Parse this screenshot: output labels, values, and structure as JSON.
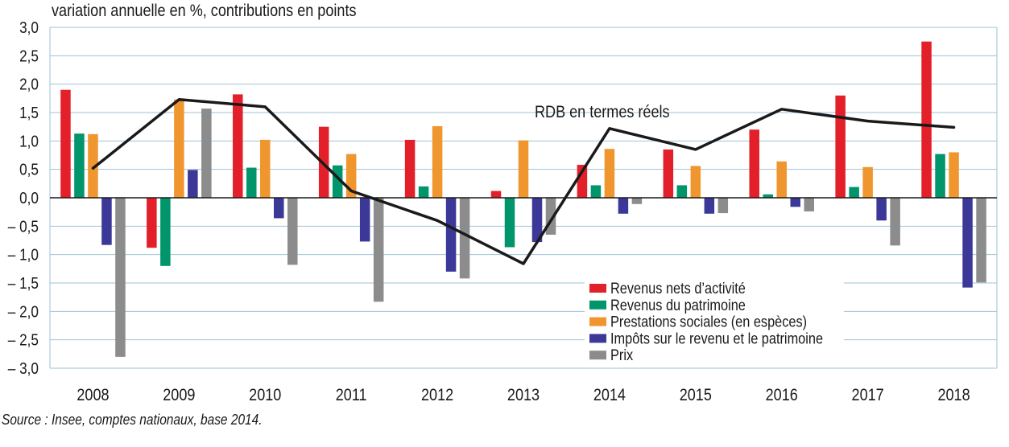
{
  "chart_data": {
    "type": "bar",
    "title": "variation annuelle en %, contributions en points",
    "source_prefix": "Source",
    "source_text": " : Insee, comptes nationaux, base 2014.",
    "categories": [
      "2008",
      "2009",
      "2010",
      "2011",
      "2012",
      "2013",
      "2014",
      "2015",
      "2016",
      "2017",
      "2018"
    ],
    "y_tick_labels": [
      "3,0",
      "2,5",
      "2,0",
      "1,5",
      "1,0",
      "0,5",
      "0,0",
      "– 0,5",
      "– 1,0",
      "– 1,5",
      "– 2,0",
      "– 2,5",
      "– 3,0"
    ],
    "y_ticks": [
      3.0,
      2.5,
      2.0,
      1.5,
      1.0,
      0.5,
      0.0,
      -0.5,
      -1.0,
      -1.5,
      -2.0,
      -2.5,
      -3.0
    ],
    "ylim": [
      -3.0,
      3.0
    ],
    "grid": true,
    "legend_position": "bottom-right",
    "series": [
      {
        "name": "Revenus nets d’activité",
        "color": "#e3202a",
        "values": [
          1.9,
          -0.88,
          1.82,
          1.25,
          1.02,
          0.12,
          0.58,
          0.85,
          1.2,
          1.8,
          2.75
        ]
      },
      {
        "name": "Revenus du patrimoine",
        "color": "#00956a",
        "values": [
          1.13,
          -1.2,
          0.53,
          0.57,
          0.2,
          -0.87,
          0.22,
          0.22,
          0.06,
          0.19,
          0.77
        ]
      },
      {
        "name": "Prestations sociales (en espèces)",
        "color": "#f0962e",
        "values": [
          1.12,
          1.73,
          1.02,
          0.77,
          1.26,
          1.01,
          0.86,
          0.56,
          0.64,
          0.54,
          0.8
        ]
      },
      {
        "name": "Impôts sur le revenu et le patrimoine",
        "color": "#3c3897",
        "values": [
          -0.83,
          0.49,
          -0.36,
          -0.77,
          -1.3,
          -0.78,
          -0.28,
          -0.28,
          -0.16,
          -0.4,
          -1.58
        ]
      },
      {
        "name": "Prix",
        "color": "#8c8c8c",
        "values": [
          -2.8,
          1.57,
          -1.18,
          -1.83,
          -1.42,
          -0.65,
          -0.11,
          -0.27,
          -0.24,
          -0.84,
          -1.49
        ]
      }
    ],
    "line": {
      "name": "RDB en termes réels",
      "color": "#1a1a1a",
      "values": [
        0.52,
        1.73,
        1.6,
        0.12,
        -0.4,
        -1.16,
        1.22,
        0.85,
        1.56,
        1.35,
        1.24
      ]
    }
  }
}
